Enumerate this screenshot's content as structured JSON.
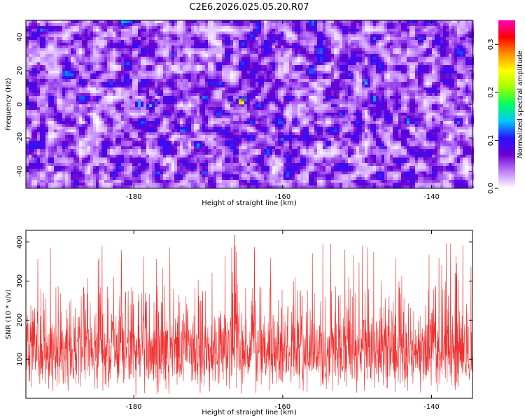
{
  "title": "C2E6.2026.025.05.20.R07",
  "chart_data": [
    {
      "type": "heatmap",
      "xlabel": "Height of straight line (km)",
      "ylabel": "Frequency (Hz)",
      "xlim": [
        -194.5,
        -134.5
      ],
      "ylim": [
        -50,
        50
      ],
      "xticks": [
        -180,
        -160,
        -140
      ],
      "yticks": [
        -40,
        -20,
        0,
        20,
        40
      ],
      "colorbar": {
        "label": "Normalized spectral amplitude",
        "range": [
          0,
          0.35
        ],
        "ticks": [
          0.0,
          0.1,
          0.2,
          0.3
        ],
        "colors": [
          "#ffffff",
          "#c080ff",
          "#6a00d0",
          "#2a10ff",
          "#00c8ff",
          "#00ff60",
          "#a0ff00",
          "#ffff00",
          "#ff9000",
          "#ff0000",
          "#ff00c0"
        ]
      },
      "peaks": [
        {
          "x": -165.5,
          "y": 2,
          "z": 0.34
        },
        {
          "x": -179.3,
          "y": 0,
          "z": 0.16
        },
        {
          "x": -177.8,
          "y": -1,
          "z": 0.15
        },
        {
          "x": -167.0,
          "y": 3,
          "z": 0.12
        },
        {
          "x": -177.0,
          "y": 1,
          "z": 0.12
        }
      ]
    },
    {
      "type": "line",
      "xlabel": "Height of straight line (km)",
      "ylabel": "SNR (10 * v/v)",
      "xlim": [
        -194.5,
        -134.5
      ],
      "ylim": [
        0,
        430
      ],
      "xticks": [
        -180,
        -160,
        -140
      ],
      "yticks": [
        100,
        200,
        300,
        400
      ],
      "color": "#f03030",
      "baseline": 120,
      "max": {
        "x": -166.5,
        "y": 418
      }
    }
  ]
}
